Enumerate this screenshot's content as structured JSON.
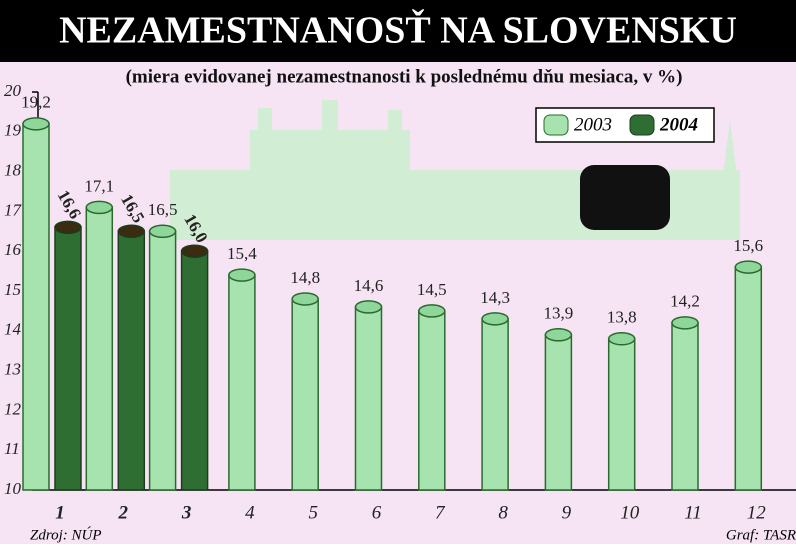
{
  "chart_data": {
    "type": "bar",
    "title": "NEZAMESTNANOSŤ NA SLOVENSKU",
    "subtitle": "(miera evidovanej nezamestnanosti k poslednému dňu mesiaca, v %)",
    "categories": [
      "1",
      "2",
      "3",
      "4",
      "5",
      "6",
      "7",
      "8",
      "9",
      "10",
      "11",
      "12"
    ],
    "series": [
      {
        "name": "2003",
        "color": "#a6e3ae",
        "values": [
          19.2,
          17.1,
          16.5,
          15.4,
          14.8,
          14.6,
          14.5,
          14.3,
          13.9,
          13.8,
          14.2,
          15.6
        ],
        "value_labels": [
          "19,2",
          "17,1",
          "16,5",
          "15,4",
          "14,8",
          "14,6",
          "14,5",
          "14,3",
          "13,9",
          "13,8",
          "14,2",
          "15,6"
        ]
      },
      {
        "name": "2004",
        "color": "#2f6e33",
        "values": [
          16.6,
          16.5,
          16.0,
          null,
          null,
          null,
          null,
          null,
          null,
          null,
          null,
          null
        ],
        "value_labels": [
          "16,6",
          "16,5",
          "16,0",
          null,
          null,
          null,
          null,
          null,
          null,
          null,
          null,
          null
        ]
      }
    ],
    "ylim": [
      10,
      20
    ],
    "yticks": [
      10,
      11,
      12,
      13,
      14,
      15,
      16,
      17,
      18,
      19,
      20
    ],
    "source": "Zdroj: NÚP",
    "credit": "Graf: TASR"
  }
}
